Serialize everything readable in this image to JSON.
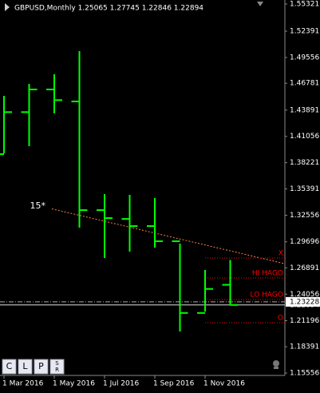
{
  "chart_data": {
    "type": "ohlc",
    "title": "GBPUSD,Monthly  1.25065 1.27745 1.22846 1.22894",
    "categories": [
      "1 Mar 2016",
      null,
      "1 May 2016",
      null,
      "1 Jul 2016",
      null,
      "1 Sep 2016",
      null,
      "1 Nov 2016",
      null
    ],
    "series": [
      {
        "color": "#00ff00",
        "open": [
          1.3914,
          1.4367,
          1.4611,
          1.4482,
          1.3311,
          1.3216,
          1.3139,
          1.2976,
          1.2203,
          1.25065
        ],
        "high": [
          1.4542,
          1.4671,
          1.4775,
          1.5024,
          1.3484,
          1.3475,
          1.3441,
          1.295,
          1.2666,
          1.27745
        ],
        "low": [
          1.3923,
          1.4,
          1.4353,
          1.3122,
          1.2795,
          1.2864,
          1.2907,
          1.2003,
          1.2218,
          1.22846
        ],
        "close": [
          1.4367,
          1.4611,
          1.4496,
          1.3311,
          1.3225,
          1.3139,
          1.2976,
          1.2203,
          1.2462,
          1.22894
        ]
      }
    ],
    "ylim": [
      1.153,
      1.5575
    ],
    "yticks": [
      1.55321,
      1.52391,
      1.49556,
      1.46781,
      1.43891,
      1.41056,
      1.38221,
      1.35391,
      1.32556,
      1.29696,
      1.26891,
      1.24056,
      1.21196,
      1.18391,
      1.15556
    ],
    "trend_line": {
      "label": "15*",
      "color": "#ff7f50",
      "values": [
        1.3319,
        1.2872
      ]
    },
    "levels": [
      {
        "label": "X",
        "value": 1.2795
      },
      {
        "label": "HI HAGO",
        "value": 1.258
      },
      {
        "label": "LO HAGO",
        "value": 1.2348
      },
      {
        "label": "O",
        "value": 1.2098
      }
    ],
    "level_color": "#ff0000",
    "price_lines": [
      {
        "value": 1.22894
      },
      {
        "value": 1.23228
      }
    ]
  },
  "toolbar": {
    "buttons": [
      "C",
      "L",
      "P"
    ],
    "sr": [
      "S",
      "R"
    ]
  }
}
